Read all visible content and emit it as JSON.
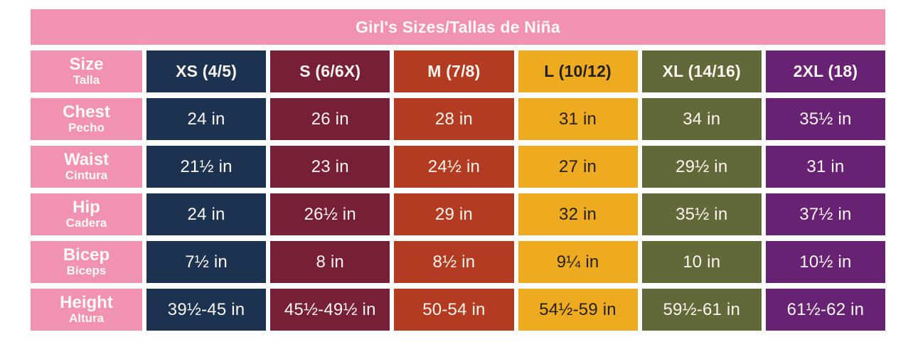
{
  "chart_data": {
    "type": "table",
    "title": "Girl's Sizes/Tallas de Niña",
    "size_header": {
      "en": "Size",
      "es": "Talla"
    },
    "columns": [
      {
        "id": "xs",
        "label": "XS (4/5)",
        "bg": "#1b3351",
        "fg": "#fbf6ef"
      },
      {
        "id": "s",
        "label": "S (6/6X)",
        "bg": "#771f36",
        "fg": "#fbf6ef"
      },
      {
        "id": "m",
        "label": "M (7/8)",
        "bg": "#b23b22",
        "fg": "#fbf6ef"
      },
      {
        "id": "l",
        "label": "L (10/12)",
        "bg": "#eeab1f",
        "fg": "#231f20"
      },
      {
        "id": "2xl-olive",
        "label": "XL (14/16)",
        "bg": "#626939",
        "fg": "#fbf6ef"
      },
      {
        "id": "2xl",
        "label": "2XL (18)",
        "bg": "#682273",
        "fg": "#fbf6ef"
      }
    ],
    "rows": [
      {
        "id": "chest",
        "en": "Chest",
        "es": "Pecho",
        "values": [
          "24 in",
          "26 in",
          "28 in",
          "31 in",
          "34 in",
          "35½ in"
        ]
      },
      {
        "id": "waist",
        "en": "Waist",
        "es": "Cintura",
        "values": [
          "21½ in",
          "23 in",
          "24½ in",
          "27 in",
          "29½ in",
          "31 in"
        ]
      },
      {
        "id": "hip",
        "en": "Hip",
        "es": "Cadera",
        "values": [
          "24 in",
          "26½ in",
          "29 in",
          "32 in",
          "35½ in",
          "37½ in"
        ]
      },
      {
        "id": "bicep",
        "en": "Bicep",
        "es": "Bíceps",
        "values": [
          "7½ in",
          "8 in",
          "8½ in",
          "9¼ in",
          "10 in",
          "10½ in"
        ]
      },
      {
        "id": "height",
        "en": "Height",
        "es": "Altura",
        "values": [
          "39½-45 in",
          "45½-49½ in",
          "50-54 in",
          "54½-59 in",
          "59½-61 in",
          "61½-62 in"
        ]
      }
    ],
    "colors": {
      "pink": "#f192b2",
      "title_text": "#fdfaf5",
      "label_text": "#fdfaf5",
      "page_bg": "#ffffff"
    }
  }
}
